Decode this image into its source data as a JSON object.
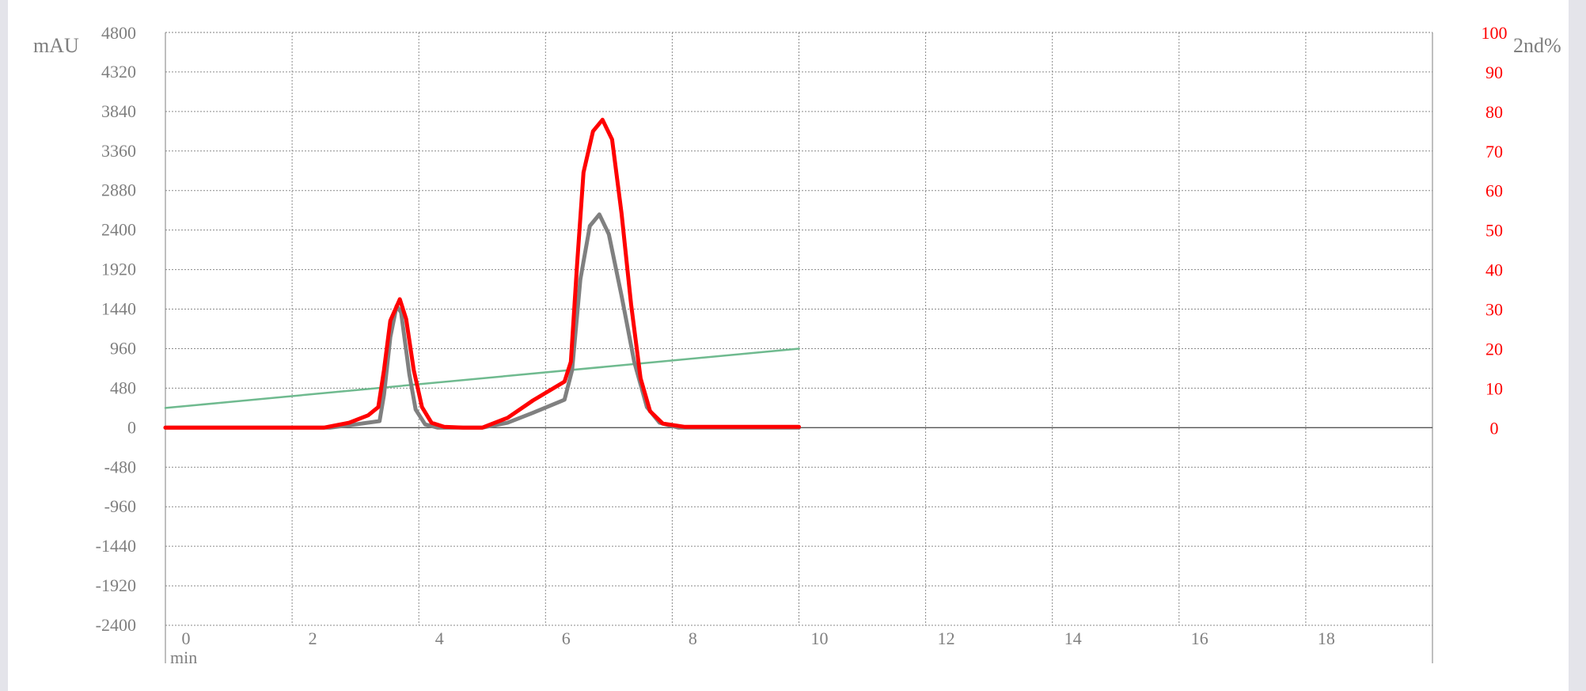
{
  "chart_data": {
    "type": "line",
    "xlabel": "min",
    "ylabel": "mAU",
    "y2label": "2nd%",
    "xlim": [
      0,
      20
    ],
    "ylim": [
      -2400,
      4800
    ],
    "y2lim": [
      0,
      100
    ],
    "x_ticks": [
      "0",
      "2",
      "4",
      "6",
      "8",
      "10",
      "12",
      "14",
      "16",
      "18"
    ],
    "y_ticks": [
      "4800",
      "4320",
      "3840",
      "3360",
      "2880",
      "2400",
      "1920",
      "1440",
      "960",
      "480",
      "0",
      "-480",
      "-960",
      "-1440",
      "-1920",
      "-2400"
    ],
    "y2_ticks": [
      "100",
      "90",
      "80",
      "70",
      "60",
      "50",
      "40",
      "30",
      "20",
      "10",
      "0"
    ],
    "grid": true,
    "series": [
      {
        "color": "#808080",
        "axis": "left",
        "points": [
          [
            0,
            0
          ],
          [
            2.6,
            0
          ],
          [
            3.0,
            40
          ],
          [
            3.38,
            80
          ],
          [
            3.45,
            400
          ],
          [
            3.55,
            1100
          ],
          [
            3.65,
            1480
          ],
          [
            3.72,
            1400
          ],
          [
            3.85,
            650
          ],
          [
            3.95,
            220
          ],
          [
            4.1,
            40
          ],
          [
            4.3,
            0
          ],
          [
            5.0,
            0
          ],
          [
            5.4,
            60
          ],
          [
            5.8,
            180
          ],
          [
            6.3,
            340
          ],
          [
            6.42,
            700
          ],
          [
            6.55,
            1800
          ],
          [
            6.7,
            2450
          ],
          [
            6.85,
            2590
          ],
          [
            7.0,
            2350
          ],
          [
            7.2,
            1600
          ],
          [
            7.4,
            800
          ],
          [
            7.6,
            250
          ],
          [
            7.8,
            60
          ],
          [
            8.1,
            0
          ],
          [
            10,
            0
          ]
        ]
      },
      {
        "color": "#ff0000",
        "axis": "left",
        "points": [
          [
            0,
            0
          ],
          [
            2.5,
            0
          ],
          [
            2.9,
            60
          ],
          [
            3.2,
            150
          ],
          [
            3.36,
            250
          ],
          [
            3.45,
            700
          ],
          [
            3.55,
            1300
          ],
          [
            3.7,
            1560
          ],
          [
            3.8,
            1320
          ],
          [
            3.92,
            700
          ],
          [
            4.05,
            250
          ],
          [
            4.2,
            60
          ],
          [
            4.4,
            10
          ],
          [
            4.7,
            0
          ],
          [
            5.0,
            0
          ],
          [
            5.4,
            120
          ],
          [
            5.8,
            330
          ],
          [
            6.3,
            560
          ],
          [
            6.4,
            800
          ],
          [
            6.5,
            2000
          ],
          [
            6.6,
            3100
          ],
          [
            6.75,
            3600
          ],
          [
            6.9,
            3740
          ],
          [
            7.05,
            3500
          ],
          [
            7.2,
            2600
          ],
          [
            7.35,
            1500
          ],
          [
            7.5,
            600
          ],
          [
            7.65,
            200
          ],
          [
            7.85,
            50
          ],
          [
            8.2,
            10
          ],
          [
            10,
            10
          ]
        ]
      },
      {
        "color": "#6fba8f",
        "axis": "right",
        "points": [
          [
            0,
            5
          ],
          [
            10,
            20
          ]
        ]
      }
    ]
  }
}
